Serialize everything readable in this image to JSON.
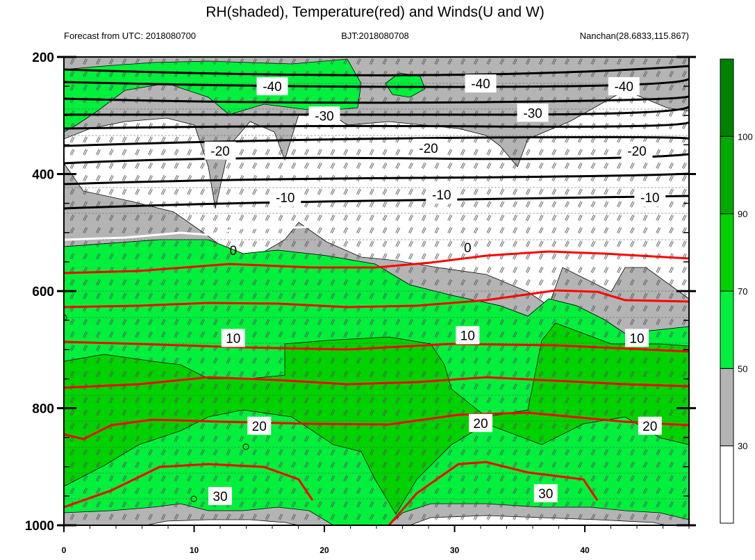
{
  "chart_data": {
    "type": "contour",
    "title": "RH(shaded), Temperature(red) and Winds(U and W)",
    "subtitle_left": "Forecast from UTC: 2018080700",
    "subtitle_center": "BJT:2018080708",
    "subtitle_right": "Nanchan(28.6833,115.867)",
    "x_ticks": [
      0,
      10,
      20,
      30,
      40
    ],
    "xlim": [
      0,
      48
    ],
    "y_ticks": [
      200,
      400,
      600,
      800,
      1000
    ],
    "ylim": [
      200,
      1000
    ],
    "y_reversed": true,
    "colorbar": {
      "ticks": [
        30,
        50,
        70,
        90,
        100
      ],
      "colors": [
        "#ffffff",
        "#b4b4b4",
        "#00f03c",
        "#00d200",
        "#00aa00",
        "#008200"
      ]
    },
    "temperature_contours": [
      {
        "label": "-40",
        "level": 250,
        "label_x": [
          16,
          32,
          43
        ],
        "color": "#000000"
      },
      {
        "label": "-30",
        "level": 300,
        "label_x": [
          20,
          36
        ],
        "color": "#000000"
      },
      {
        "label": "-20",
        "level": 360,
        "label_x": [
          12,
          28,
          44
        ],
        "color": "#000000"
      },
      {
        "label": "-10",
        "level": 440,
        "label_x": [
          17,
          29,
          45
        ],
        "color": "#000000"
      },
      {
        "label": "0",
        "level": 530,
        "label_x": [
          13,
          31
        ],
        "color": "#ffffff"
      },
      {
        "label": "10",
        "level": 680,
        "label_x": [
          13,
          31,
          44
        ],
        "color": "#ff0000"
      },
      {
        "label": "20",
        "level": 830,
        "label_x": [
          15,
          32,
          45
        ],
        "color": "#ff0000"
      },
      {
        "label": "30",
        "level": 950,
        "label_x": [
          12,
          37
        ],
        "color": "#ff0000"
      }
    ]
  }
}
